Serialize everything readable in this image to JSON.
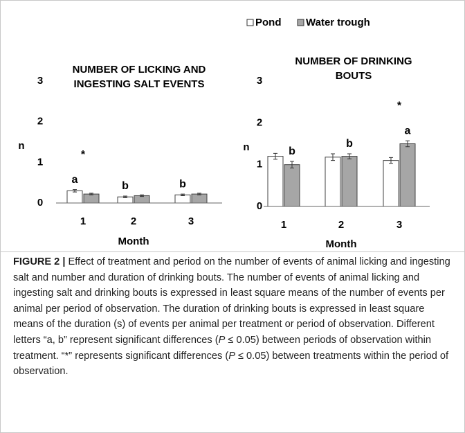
{
  "chart_data": [
    {
      "type": "bar",
      "title": [
        "NUMBER OF LICKING AND",
        "INGESTING SALT EVENTS"
      ],
      "ylabel": "n",
      "xlabel": "Month",
      "categories": [
        "1",
        "2",
        "3"
      ],
      "series": [
        {
          "name": "Pond",
          "color": "#ffffff",
          "values": [
            0.3,
            0.15,
            0.2
          ],
          "errors": [
            0.03,
            0.02,
            0.02
          ]
        },
        {
          "name": "Water trough",
          "color": "#a6a6a6",
          "values": [
            0.22,
            0.18,
            0.22
          ],
          "errors": [
            0.02,
            0.02,
            0.02
          ]
        }
      ],
      "annotations": [
        {
          "text": "a",
          "category": "1",
          "series": "Pond"
        },
        {
          "text": "b",
          "category": "2",
          "series": "Pond"
        },
        {
          "text": "b",
          "category": "3",
          "series": "Pond"
        },
        {
          "text": "*",
          "category": "1"
        }
      ],
      "ylim": [
        0,
        3
      ],
      "yticks": [
        0,
        1,
        2,
        3
      ]
    },
    {
      "type": "bar",
      "title": [
        "NUMBER OF DRINKING",
        "BOUTS"
      ],
      "ylabel": "n",
      "xlabel": "Month",
      "categories": [
        "1",
        "2",
        "3"
      ],
      "series": [
        {
          "name": "Pond",
          "color": "#ffffff",
          "values": [
            1.2,
            1.18,
            1.1
          ],
          "errors": [
            0.07,
            0.08,
            0.07
          ]
        },
        {
          "name": "Water trough",
          "color": "#a6a6a6",
          "values": [
            1.0,
            1.2,
            1.5
          ],
          "errors": [
            0.08,
            0.06,
            0.07
          ]
        }
      ],
      "annotations": [
        {
          "text": "b",
          "category": "1",
          "series": "Water trough"
        },
        {
          "text": "b",
          "category": "2",
          "series": "Water trough"
        },
        {
          "text": "a",
          "category": "3",
          "series": "Water trough"
        },
        {
          "text": "*",
          "category": "3"
        }
      ],
      "ylim": [
        0,
        3
      ],
      "yticks": [
        0,
        1,
        2,
        3
      ]
    }
  ],
  "caption": {
    "label": "FIGURE 2 |",
    "parts": [
      {
        "text": "Effect of treatment and period on the number of events of animal licking and ingesting salt and number and duration of drinking bouts. The number of events of animal licking and ingesting salt and drinking bouts is expressed in least square means of the number of events per animal per period of observation. The duration of drinking bouts is expressed in least square means of the duration (s) of events per animal per treatment or period of observation. Different letters “a, b” represent significant differences ("
      },
      {
        "text": "P",
        "italic": true
      },
      {
        "text": " ≤ 0.05) between periods of observation within treatment. “*” represents significant differences ("
      },
      {
        "text": "P",
        "italic": true
      },
      {
        "text": " ≤ 0.05) between treatments within the period of observation."
      }
    ]
  }
}
